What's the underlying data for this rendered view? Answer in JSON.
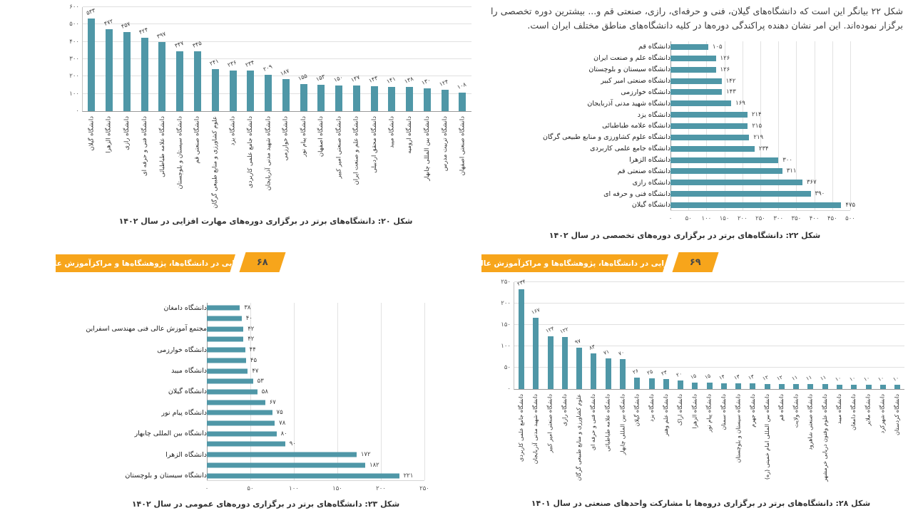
{
  "colors": {
    "bar_teal": "#4f97a7",
    "banner_orange": "#f7a51b"
  },
  "page_left": {
    "page_number": "۶۸",
    "banner_title": "مهارت‌افزایی در دانشگاه‌ها، پژوهشگاه‌ها و مراکزآموزش عالی کشور"
  },
  "page_right": {
    "page_number": "۶۹",
    "banner_title": "مهارت‌افزایی در دانشگاه‌ها، پژوهشگاه‌ها و مراکزآموزش عالی کشور",
    "intro": "شکل ۲۲ بیانگر این است که دانشگاه‌های گیلان، فنی و حرفه‌ای، رازی، صنعتی قم و... بیشترین دوره تخصصی را برگزار نموده‌اند. این امر نشان دهنده پراکندگی دوره‌ها در کلیه دانشگاه‌های مناطق مختلف ایران است."
  },
  "chart_data": [
    {
      "id": "figure-20",
      "type": "bar",
      "orientation": "vertical",
      "caption": "شکل ۲۰: دانشگاه‌های برتر در برگزاری دوره‌های مهارت افزایی در سال ۱۴۰۲",
      "ylim": [
        0,
        600
      ],
      "ytick_step": 100,
      "grid": true,
      "categories": [
        "دانشگاه گیلان",
        "دانشگاه الزهرا",
        "دانشگاه رازی",
        "دانشگاه فنی و حرفه ای",
        "دانشگاه علامه طباطبائی",
        "دانشگاه سیستان و بلوچستان",
        "دانشگاه صنعتی قم",
        "علوم کشاورزی و منابع طبیعی گرگان",
        "دانشگاه یزد",
        "دانشگاه جامع علمی کاربردی",
        "دانشگاه شهید مدنی آذربایجان",
        "دانشگاه خوارزمی",
        "دانشگاه پیام نور",
        "دانشگاه اصفهان",
        "دانشگاه صنعتی امیر کبیر",
        "دانشگاه علم و صنعت ایران",
        "دانشگاه محقق اردبیلی",
        "دانشگاه میبد",
        "دانشگاه ارومیه",
        "دانشگاه بین المللی چابهار",
        "دانشگاه تربیت مدرس",
        "دانشگاه صنعتی اصفهان"
      ],
      "values": [
        533,
        472,
        457,
        424,
        397,
        347,
        345,
        241,
        236,
        234,
        209,
        187,
        155,
        153,
        150,
        147,
        143,
        141,
        138,
        130,
        124,
        108
      ]
    },
    {
      "id": "figure-22",
      "type": "bar",
      "orientation": "horizontal",
      "caption": "شکل ۲۲: دانشگاه‌های برتر در برگزاری دوره‌های تخصصی در سال ۱۴۰۲",
      "xlim": [
        0,
        500
      ],
      "xtick_step": 50,
      "grid": true,
      "categories": [
        "دانشگاه قم",
        "دانشگاه علم و صنعت ایران",
        "دانشگاه سیستان و بلوچستان",
        "دانشگاه صنعتی امیر کبیر",
        "دانشگاه خوارزمی",
        "دانشگاه شهید مدنی آذربایجان",
        "دانشگاه یزد",
        "دانشگاه علامه طباطبائی",
        "دانشگاه علوم کشاورزی و منابع طبیعی گرگان",
        "دانشگاه جامع علمی کاربردی",
        "دانشگاه الزهرا",
        "دانشگاه صنعتی قم",
        "دانشگاه رازی",
        "دانشگاه فنی و حرفه ای",
        "دانشگاه گیلان"
      ],
      "values": [
        105,
        126,
        126,
        142,
        143,
        169,
        214,
        215,
        219,
        234,
        300,
        311,
        367,
        390,
        475
      ]
    },
    {
      "id": "figure-23",
      "type": "bar",
      "orientation": "horizontal",
      "caption": "شکل ۲۳: دانشگاه‌های برتر در برگزاری دوره‌های عمومی در سال ۱۴۰۲",
      "xlim": [
        0,
        250
      ],
      "xtick_step": 50,
      "grid": true,
      "categories": [
        "دانشگاه دامغان",
        "",
        "مجتمع آموزش عالی فنی مهندسی اسفراین",
        "",
        "دانشگاه خوارزمی",
        "",
        "دانشگاه میبد",
        "",
        "دانشگاه گیلان",
        "",
        "دانشگاه پیام نور",
        "",
        "دانشگاه بین المللی چابهار",
        "",
        "دانشگاه الزهرا",
        "",
        "دانشگاه سیستان و بلوچستان"
      ],
      "values": [
        38,
        40,
        42,
        42,
        44,
        45,
        47,
        53,
        58,
        67,
        75,
        78,
        80,
        90,
        172,
        182,
        221
      ]
    },
    {
      "id": "figure-28",
      "type": "bar",
      "orientation": "vertical",
      "caption": "شکل ۲۸: دانشگاه‌های برتر در برگزاری دروه‌ها با مشارکت واحدهای صنعتی در سال ۱۴۰۱",
      "ylim": [
        0,
        250
      ],
      "ytick_step": 50,
      "grid": true,
      "categories": [
        "دانشگاه جامع علمی کاربردی",
        "دانشگاه شهید مدنی آذربایجان",
        "دانشگاه صنعتی امیر کبیر",
        "دانشگاه رازی",
        "علوم کشاورزی و منابع طبیعی گرگان",
        "دانشگاه فنی و حرفه ای",
        "دانشگاه علامه طباطبائی",
        "دانشگاه بین المللی چابهار",
        "دانشگاه گیلان",
        "دانشگاه یزد",
        "دانشگاه علم وهنر",
        "دانشگاه اراک",
        "دانشگاه الزهرا",
        "دانشگاه پیام نور",
        "دانشگاه سمنان",
        "دانشگاه سیستان و بلوچستان",
        "دانشگاه جهرم",
        "دانشگاه بین المللی امام خمینی (ره)",
        "دانشگاه قم",
        "دانشگاه ولایت",
        "دانشگاه صنعتی شاهرود",
        "دانشگاه علوم وفنون دریایی خرمشهر",
        "دانشگاه میبد",
        "دانشگاه دامغان",
        "دانشگاه ملایر",
        "دانشگاه شهرکرد",
        "دانشگاه کردستان"
      ],
      "values": [
        234,
        167,
        124,
        122,
        97,
        83,
        71,
        70,
        26,
        25,
        23,
        20,
        15,
        15,
        14,
        13,
        13,
        12,
        12,
        11,
        11,
        11,
        10,
        10,
        10,
        10,
        10
      ]
    }
  ]
}
